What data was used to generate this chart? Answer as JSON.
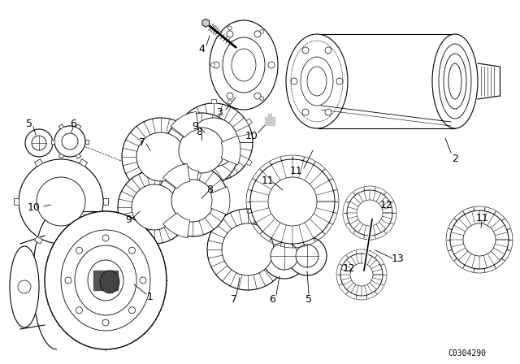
{
  "background_color": "#ffffff",
  "part_number": "C0304290",
  "figsize": [
    6.4,
    4.48
  ],
  "dpi": 100,
  "line_color": "#000000",
  "hatch_color": "#000000"
}
